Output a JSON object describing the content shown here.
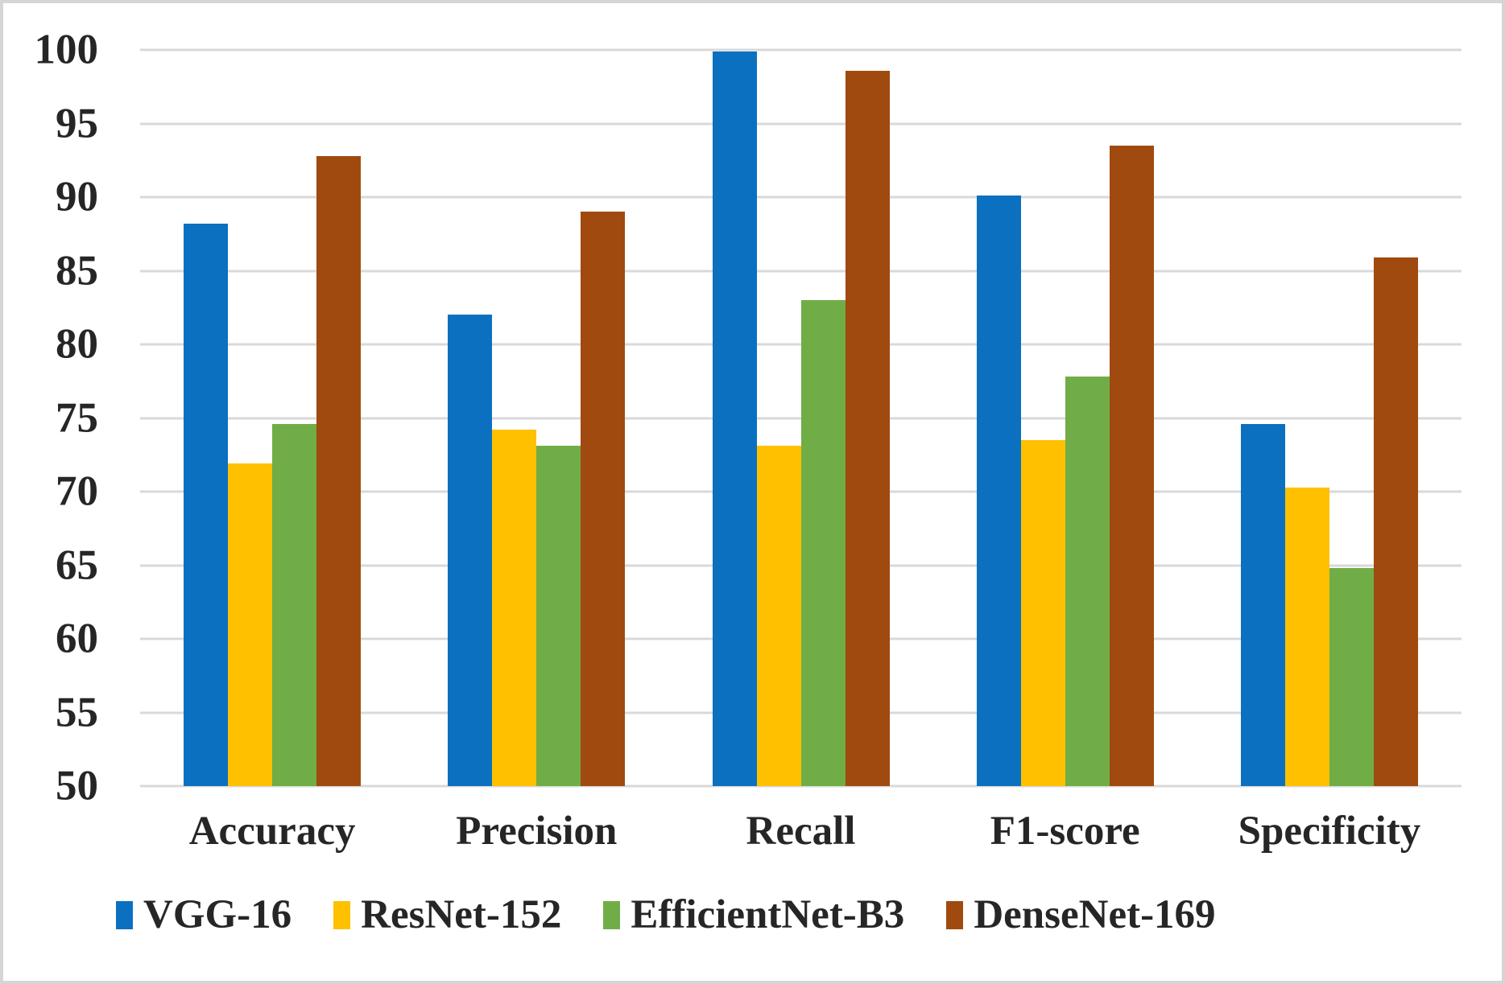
{
  "chart_data": {
    "type": "bar",
    "title": "",
    "categories": [
      "Accuracy",
      "Precision",
      "Recall",
      "F1-score",
      "Specificity"
    ],
    "series": [
      {
        "name": "VGG-16",
        "color": "#0B70C0",
        "values": [
          88.2,
          82.0,
          99.9,
          90.1,
          74.6
        ]
      },
      {
        "name": "ResNet-152",
        "color": "#FFC000",
        "values": [
          71.9,
          74.2,
          73.1,
          73.5,
          70.3
        ]
      },
      {
        "name": "EfficientNet-B3",
        "color": "#70AD47",
        "values": [
          74.6,
          73.1,
          83.0,
          77.8,
          64.8
        ]
      },
      {
        "name": "DenseNet-169",
        "color": "#A04A0F",
        "values": [
          92.8,
          89.0,
          98.6,
          93.5,
          85.9
        ]
      }
    ],
    "ylim": [
      50,
      100
    ],
    "ytick_step": 5,
    "yticks": [
      "100",
      "95",
      "90",
      "85",
      "80",
      "75",
      "70",
      "65",
      "60",
      "55",
      "50"
    ],
    "xlabel": "",
    "ylabel": "",
    "grid": true,
    "legend_position": "bottom"
  },
  "style": {
    "gridline_color": "#D9D9D9",
    "text_color": "#262626",
    "background": "#FFFFFF",
    "border_color": "#D5D5D5"
  }
}
